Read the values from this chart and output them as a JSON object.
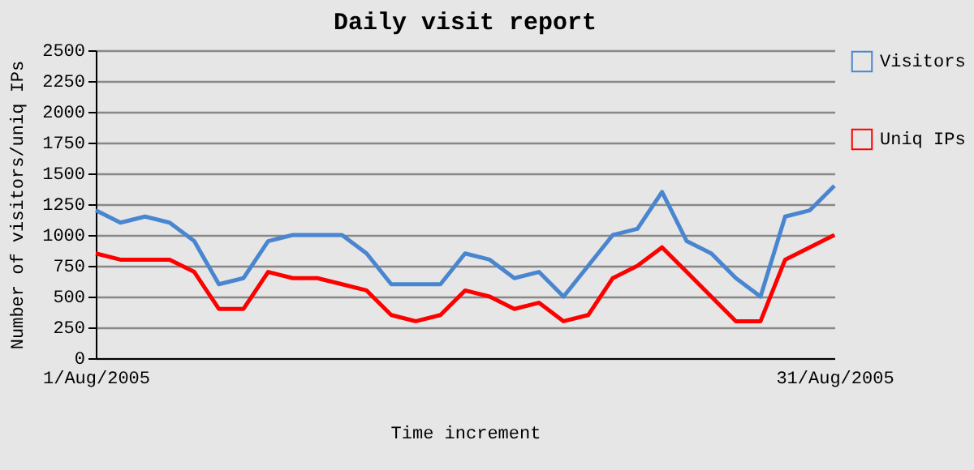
{
  "chart_data": {
    "type": "line",
    "title": "Daily visit report",
    "xlabel": "Time increment",
    "ylabel": "Number of visitors/uniq IPs",
    "categories": [
      "1/Aug/2005",
      null,
      null,
      null,
      null,
      null,
      null,
      null,
      null,
      null,
      null,
      null,
      null,
      null,
      null,
      null,
      null,
      null,
      null,
      null,
      null,
      null,
      null,
      null,
      null,
      null,
      null,
      null,
      null,
      null,
      "31/Aug/2005"
    ],
    "series": [
      {
        "name": "Visitors",
        "color": "#4a86d0",
        "values": [
          1200,
          1100,
          1150,
          1100,
          950,
          600,
          650,
          950,
          1000,
          1000,
          1000,
          850,
          600,
          600,
          600,
          850,
          800,
          650,
          700,
          500,
          750,
          1000,
          1050,
          1350,
          950,
          850,
          650,
          500,
          1150,
          1200,
          1400
        ]
      },
      {
        "name": "Uniq IPs",
        "color": "#ff0000",
        "values": [
          850,
          800,
          800,
          800,
          700,
          400,
          400,
          700,
          650,
          650,
          600,
          550,
          350,
          300,
          350,
          550,
          500,
          400,
          450,
          300,
          350,
          650,
          750,
          900,
          700,
          500,
          300,
          300,
          800,
          900,
          1000
        ]
      }
    ],
    "ylim": [
      0,
      2500
    ],
    "yticks": [
      0,
      250,
      500,
      750,
      1000,
      1250,
      1500,
      1750,
      2000,
      2250,
      2500
    ],
    "grid": "y",
    "legend": "top right",
    "marker": "none",
    "line_style": "solid"
  }
}
